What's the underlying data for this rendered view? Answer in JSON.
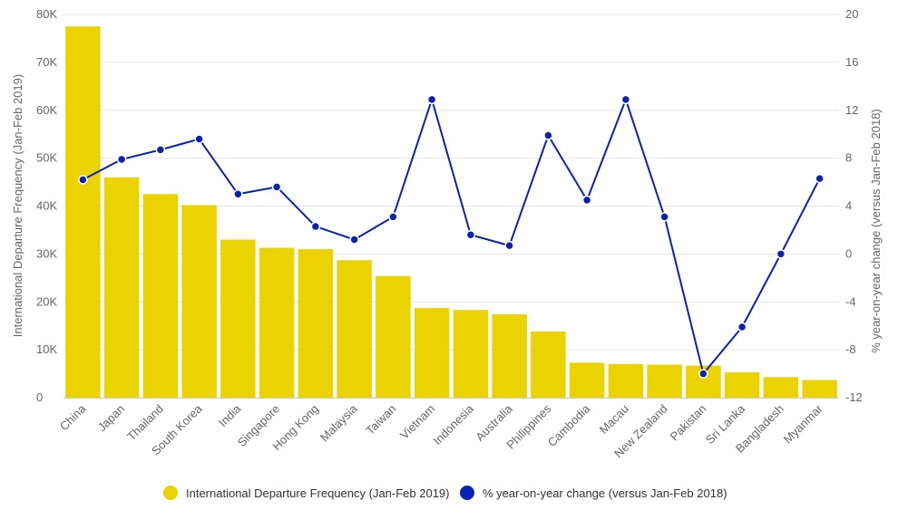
{
  "chart_data": {
    "type": "bar",
    "categories": [
      "China",
      "Japan",
      "Thailand",
      "South Korea",
      "India",
      "Singapore",
      "Hong Kong",
      "Malaysia",
      "Taiwan",
      "Vietnam",
      "Indonesia",
      "Australia",
      "Philippines",
      "Cambodia",
      "Macau",
      "New Zealand",
      "Pakistan",
      "Sri Lanka",
      "Bangladesh",
      "Myanmar"
    ],
    "series": [
      {
        "name": "International Departure Frequency (Jan-Feb 2019)",
        "type": "bar",
        "axis": "left",
        "color": "#ead300",
        "values": [
          77500,
          46000,
          42500,
          40200,
          33000,
          31300,
          31000,
          28700,
          25400,
          18700,
          18300,
          17400,
          13800,
          7300,
          7000,
          6900,
          6700,
          5300,
          4300,
          3700
        ]
      },
      {
        "name": "% year-on-year change (versus Jan-Feb 2018)",
        "type": "line",
        "axis": "right",
        "color": "#0a22b0",
        "values": [
          6.2,
          7.9,
          8.7,
          9.6,
          5.0,
          5.6,
          2.3,
          1.2,
          3.1,
          12.9,
          1.6,
          0.7,
          9.9,
          4.5,
          12.9,
          3.1,
          -10.0,
          -6.1,
          0.0,
          6.3
        ]
      }
    ],
    "y_left": {
      "label": "International Departure Frequency (Jan-Feb 2019)",
      "ylim": [
        0,
        80000
      ],
      "ticks": [
        "0",
        "10K",
        "20K",
        "30K",
        "40K",
        "50K",
        "60K",
        "70K",
        "80K"
      ]
    },
    "y_right": {
      "label": "% year-on-year change (versus Jan-Feb 2018)",
      "ylim": [
        -12,
        20
      ],
      "ticks": [
        "-12",
        "-8",
        "-4",
        "0",
        "4",
        "8",
        "12",
        "16",
        "20"
      ]
    },
    "grid": true,
    "legend_position": "bottom-center"
  }
}
